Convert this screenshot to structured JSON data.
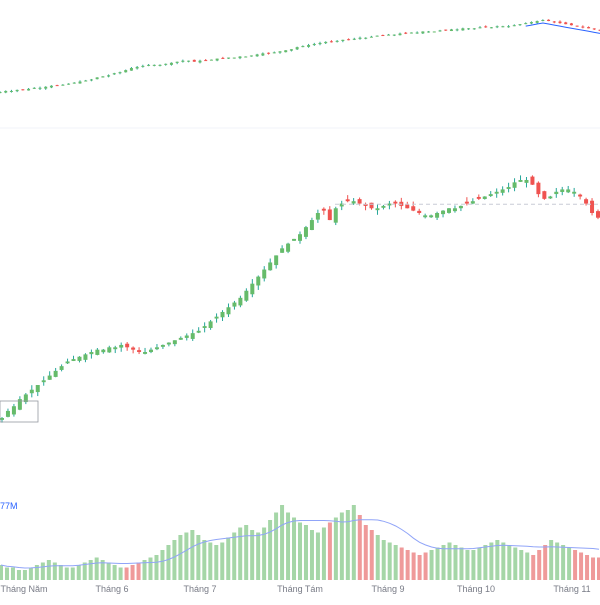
{
  "chart_data": {
    "type": "candlestick",
    "title": "",
    "xlabel": "",
    "ylabel": "",
    "x_tick_labels": [
      "Tháng Năm",
      "Tháng 6",
      "Tháng 7",
      "Tháng Tám",
      "Tháng 9",
      "Tháng 10",
      "Tháng 11"
    ],
    "volume_label": "77M",
    "colors": {
      "up": "#26a69a",
      "up_body": "#66bb6a",
      "down": "#ef5350",
      "up_volume": "#a5d6a7",
      "down_volume": "#ef9a9a",
      "volume_ma": "#90a4f8",
      "compare_ma": "#2962ff"
    },
    "navigator_closes": [
      12,
      13,
      13,
      14,
      14,
      15,
      16,
      16,
      17,
      18,
      18,
      19,
      20,
      21,
      22,
      23,
      24,
      26,
      27,
      28,
      30,
      31,
      33,
      35,
      36,
      37,
      38,
      38,
      38,
      39,
      40,
      41,
      42,
      42,
      41,
      42,
      42,
      43,
      44,
      44,
      45,
      45,
      46,
      46,
      47,
      48,
      49,
      49,
      50,
      51,
      52,
      53,
      55,
      56,
      57,
      58,
      59,
      60,
      60,
      61,
      62,
      62,
      63,
      64,
      64,
      65,
      66,
      66,
      67,
      67,
      68,
      68,
      69,
      69,
      70,
      70,
      70,
      71,
      71,
      72,
      72,
      73,
      73,
      73,
      74,
      74,
      74,
      75,
      75,
      75,
      76,
      77,
      78,
      79,
      80,
      81,
      80,
      79,
      78,
      77,
      76,
      75,
      74,
      73,
      72,
      71
    ],
    "main_closes": [
      0,
      3,
      5,
      8,
      10,
      12,
      14,
      16,
      18,
      20,
      22,
      24,
      25,
      26,
      27,
      28,
      29,
      29,
      30,
      30,
      31,
      30,
      29,
      28,
      28,
      29,
      30,
      31,
      32,
      33,
      34,
      35,
      36,
      37,
      39,
      41,
      43,
      45,
      47,
      49,
      51,
      54,
      57,
      60,
      63,
      66,
      69,
      72,
      74,
      76,
      78,
      81,
      84,
      87,
      88,
      84,
      89,
      91,
      92,
      92,
      91,
      90,
      89,
      89,
      90,
      91,
      91,
      90,
      89,
      88,
      87,
      86,
      86,
      87,
      88,
      89,
      89,
      90,
      91,
      92,
      93,
      94,
      95,
      96,
      97,
      98,
      100,
      101,
      101,
      99,
      95,
      93,
      94,
      96,
      97,
      97,
      96,
      94,
      91,
      87,
      85
    ],
    "volume_values": [
      6,
      5,
      5,
      4,
      4,
      5,
      6,
      7,
      8,
      7,
      6,
      5,
      5,
      6,
      7,
      8,
      9,
      8,
      7,
      6,
      5,
      5,
      6,
      7,
      8,
      9,
      10,
      12,
      14,
      16,
      18,
      19,
      20,
      18,
      16,
      15,
      14,
      15,
      17,
      19,
      21,
      22,
      20,
      19,
      21,
      24,
      27,
      30,
      27,
      25,
      23,
      22,
      20,
      19,
      21,
      23,
      25,
      27,
      28,
      30,
      26,
      22,
      20,
      18,
      16,
      15,
      14,
      13,
      12,
      11,
      10,
      11,
      12,
      13,
      14,
      15,
      14,
      13,
      12,
      12,
      13,
      14,
      15,
      16,
      15,
      14,
      13,
      12,
      11,
      10,
      12,
      14,
      16,
      15,
      14,
      13,
      12,
      11,
      10,
      9,
      9
    ]
  }
}
